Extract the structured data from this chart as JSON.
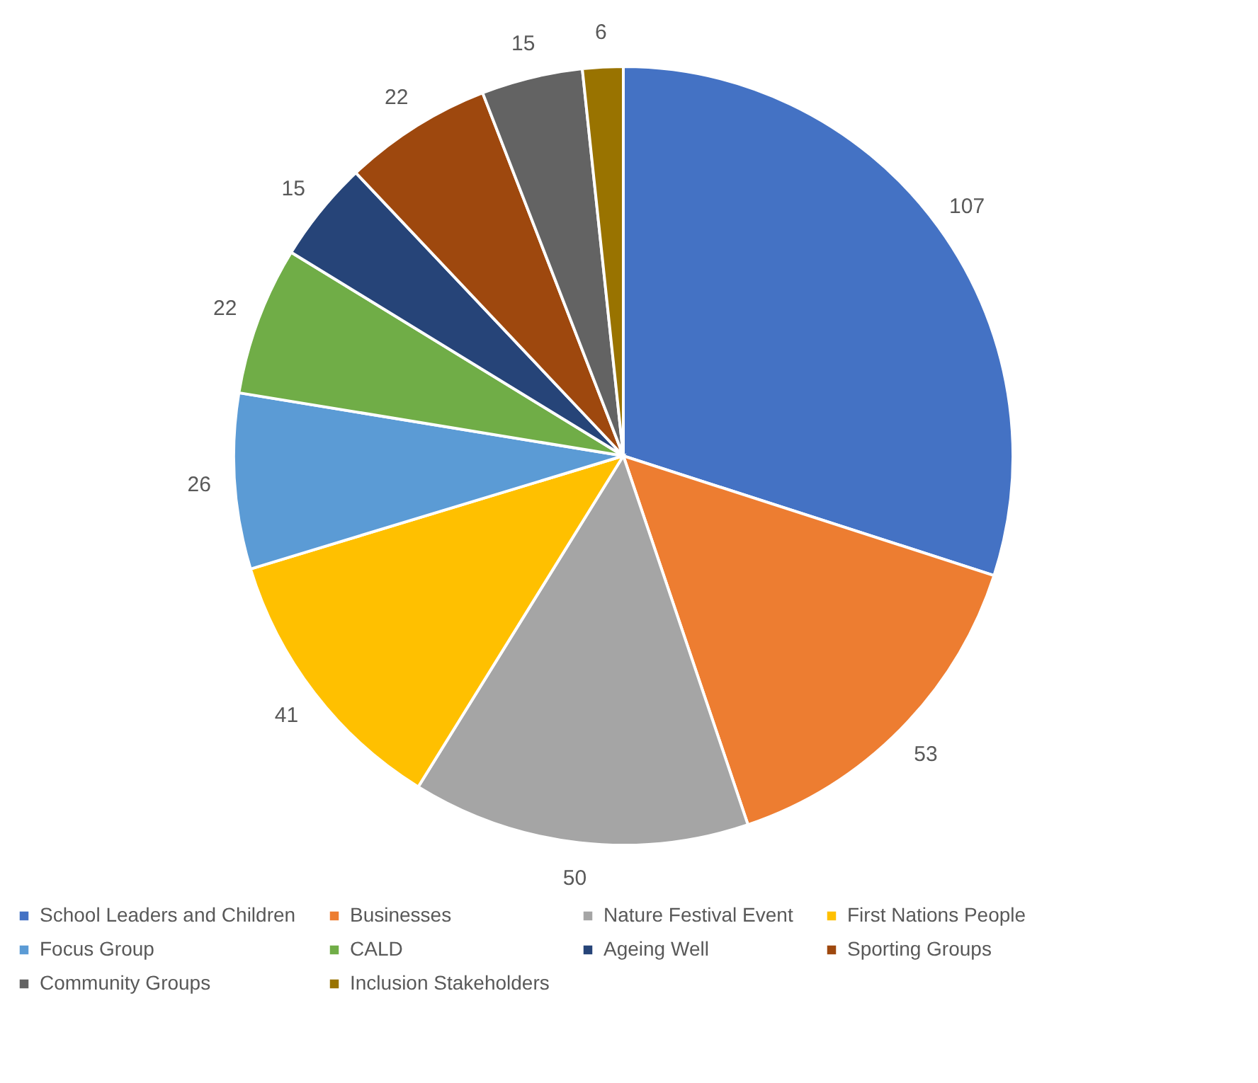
{
  "chart_data": {
    "type": "pie",
    "categories": [
      "School Leaders and Children",
      "Businesses",
      "Nature Festival Event",
      "First Nations People",
      "Focus Group",
      "CALD",
      "Ageing Well",
      "Sporting Groups",
      "Community Groups",
      "Inclusion Stakeholders"
    ],
    "values": [
      107,
      53,
      50,
      41,
      26,
      22,
      15,
      22,
      15,
      6
    ],
    "colors": [
      "#4472c4",
      "#ed7d31",
      "#a5a5a5",
      "#ffc000",
      "#5b9bd5",
      "#70ad47",
      "#264478",
      "#9e480e",
      "#636363",
      "#997300"
    ],
    "data_labels": true,
    "legend": "bottom"
  }
}
